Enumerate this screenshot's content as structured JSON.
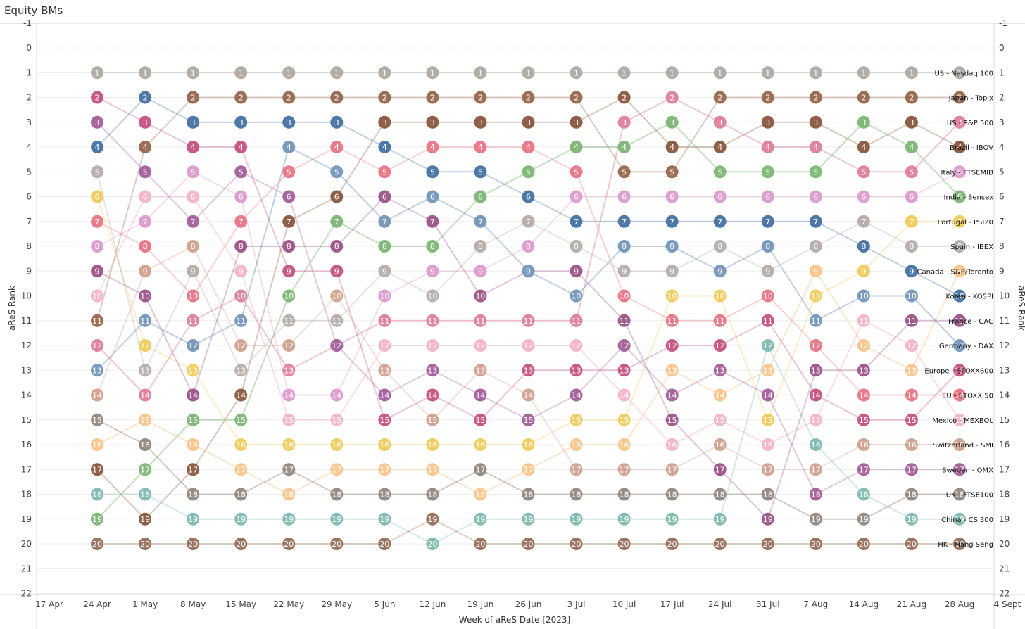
{
  "title": "Equity BMs",
  "chart_data": {
    "type": "line",
    "subtype": "rank-bump",
    "title": "Equity BMs",
    "xlabel": "Week of aReS Date [2023]",
    "ylabel": "aReS Rank",
    "ylim": [
      -1,
      22
    ],
    "yticks": [
      "-1",
      "0",
      "1",
      "2",
      "3",
      "4",
      "5",
      "6",
      "7",
      "8",
      "9",
      "10",
      "11",
      "12",
      "13",
      "14",
      "15",
      "16",
      "17",
      "18",
      "19",
      "20",
      "21",
      "22"
    ],
    "categories": [
      "17 Apr",
      "24 Apr",
      "1 May",
      "8 May",
      "15 May",
      "22 May",
      "29 May",
      "5 Jun",
      "12 Jun",
      "19 Jun",
      "26 Jun",
      "3 Jul",
      "10 Jul",
      "17 Jul",
      "24 Jul",
      "31 Jul",
      "7 Aug",
      "14 Aug",
      "21 Aug",
      "28 Aug",
      "4 Sept"
    ],
    "series": [
      {
        "name": "US - Nasdaq 100",
        "color": "#b5aca6",
        "values": [
          null,
          1,
          1,
          1,
          1,
          1,
          1,
          1,
          1,
          1,
          1,
          1,
          1,
          1,
          1,
          1,
          1,
          1,
          1,
          1,
          null
        ]
      },
      {
        "name": "Japan - Topix",
        "color": "#9c6e55",
        "values": [
          null,
          11,
          4,
          2,
          2,
          2,
          2,
          2,
          2,
          2,
          2,
          2,
          5,
          5,
          2,
          2,
          2,
          2,
          2,
          2,
          null
        ]
      },
      {
        "name": "US - S&P 500",
        "color": "#d45c7b",
        "values": [
          null,
          12,
          14,
          11,
          10,
          13,
          12,
          11,
          11,
          11,
          11,
          11,
          3,
          2,
          3,
          4,
          4,
          5,
          5,
          3,
          null
        ]
      },
      {
        "name": "Brazil - IBOV",
        "color": "#8f6048",
        "values": [
          null,
          17,
          19,
          17,
          14,
          7,
          6,
          3,
          3,
          3,
          3,
          3,
          2,
          4,
          4,
          3,
          3,
          4,
          3,
          4,
          null
        ]
      },
      {
        "name": "Italy - FTSEMIB",
        "color": "#dda0d0",
        "values": [
          null,
          8,
          7,
          5,
          6,
          14,
          14,
          10,
          9,
          9,
          8,
          6,
          6,
          6,
          6,
          6,
          6,
          6,
          6,
          5,
          null
        ]
      },
      {
        "name": "India - Sensex",
        "color": "#59a14f",
        "values": [
          null,
          19,
          17,
          15,
          15,
          10,
          7,
          8,
          8,
          6,
          5,
          4,
          4,
          3,
          5,
          5,
          5,
          3,
          4,
          6,
          null
        ]
      },
      {
        "name": "Portugal - PSI20",
        "color": "#f1ce63",
        "values": [
          null,
          6,
          12,
          13,
          16,
          16,
          16,
          16,
          16,
          16,
          16,
          15,
          15,
          10,
          10,
          15,
          10,
          9,
          7,
          7,
          null
        ]
      },
      {
        "name": "Spain - IBEX",
        "color": "#bab0ac",
        "values": [
          null,
          5,
          13,
          9,
          13,
          11,
          11,
          9,
          10,
          8,
          7,
          8,
          9,
          9,
          8,
          9,
          8,
          7,
          8,
          8,
          null
        ]
      },
      {
        "name": "Canada - S&P/Toronto",
        "color": "#f5b66b",
        "values": [
          null,
          16,
          15,
          16,
          17,
          18,
          17,
          17,
          17,
          18,
          17,
          16,
          16,
          13,
          14,
          13,
          9,
          12,
          13,
          9,
          null
        ]
      },
      {
        "name": "Korea - KOSPI",
        "color": "#4e79a7",
        "values": [
          null,
          4,
          2,
          3,
          3,
          3,
          3,
          4,
          5,
          5,
          6,
          7,
          7,
          7,
          7,
          7,
          7,
          8,
          9,
          10,
          null
        ]
      },
      {
        "name": "France - CAC",
        "color": "#a05c8e",
        "values": [
          null,
          9,
          10,
          14,
          8,
          8,
          8,
          6,
          7,
          10,
          9,
          9,
          11,
          15,
          17,
          19,
          13,
          13,
          11,
          11,
          null
        ]
      },
      {
        "name": "Germany - DAX",
        "color": "#4e79a7",
        "values": [
          null,
          13,
          11,
          12,
          11,
          4,
          5,
          7,
          6,
          7,
          9,
          10,
          8,
          8,
          9,
          8,
          11,
          10,
          10,
          12,
          null
        ]
      },
      {
        "name": "Europe - STOXX600",
        "color": "#c75a86",
        "values": [
          null,
          2,
          3,
          4,
          4,
          9,
          9,
          15,
          14,
          15,
          13,
          13,
          13,
          12,
          12,
          11,
          14,
          15,
          15,
          13,
          null
        ]
      },
      {
        "name": "EU - STOXX 50",
        "color": "#e87c8a",
        "values": [
          null,
          7,
          8,
          10,
          7,
          5,
          4,
          5,
          4,
          4,
          4,
          5,
          10,
          11,
          11,
          10,
          12,
          14,
          14,
          14,
          null
        ]
      },
      {
        "name": "Mexico - MEXBOL",
        "color": "#f2a0b8",
        "values": [
          null,
          10,
          6,
          6,
          9,
          15,
          15,
          12,
          12,
          12,
          12,
          12,
          14,
          16,
          15,
          16,
          15,
          11,
          12,
          15,
          null
        ]
      },
      {
        "name": "Switzerland - SMI",
        "color": "#d3a693",
        "values": [
          null,
          14,
          9,
          8,
          12,
          12,
          10,
          13,
          15,
          13,
          14,
          17,
          17,
          17,
          16,
          17,
          17,
          16,
          16,
          16,
          null
        ]
      },
      {
        "name": "Sweden - OMX",
        "color": "#a7669e",
        "values": [
          null,
          3,
          5,
          7,
          5,
          6,
          12,
          14,
          13,
          14,
          15,
          14,
          12,
          14,
          13,
          14,
          18,
          17,
          17,
          17,
          null
        ]
      },
      {
        "name": "UK - FTSE100",
        "color": "#76665c",
        "values": [
          null,
          15,
          16,
          18,
          18,
          17,
          18,
          18,
          18,
          17,
          18,
          18,
          18,
          18,
          18,
          18,
          19,
          19,
          18,
          18,
          null
        ]
      },
      {
        "name": "China - CSI300",
        "color": "#86bcb6",
        "values": [
          null,
          18,
          18,
          19,
          19,
          19,
          19,
          19,
          20,
          19,
          19,
          19,
          19,
          19,
          19,
          12,
          16,
          18,
          19,
          19,
          null
        ]
      },
      {
        "name": "HK - Hang Seng",
        "color": "#9c7560",
        "values": [
          null,
          20,
          20,
          20,
          20,
          20,
          20,
          20,
          19,
          20,
          20,
          20,
          20,
          20,
          20,
          20,
          20,
          20,
          20,
          20,
          null
        ]
      }
    ],
    "end_labels": [
      "US - Nasdaq 100",
      "Japan - Topix",
      "US - S&P 500",
      "Brazil - IBOV",
      "Italy - FTSEMIB",
      "India - Sensex",
      "Portugal - PSI20",
      "Spain - IBEX",
      "Canada - S&P/Toronto",
      "Korea - KOSPI",
      "France - CAC",
      "Germany - DAX",
      "Europe - STOXX600",
      "EU - STOXX 50",
      "Mexico - MEXBOL",
      "Switzerland - SMI",
      "Sweden - OMX",
      "UK - FTSE100",
      "China - CSI300",
      "HK - Hang Seng"
    ],
    "grid": true,
    "legend": "inline-right"
  }
}
